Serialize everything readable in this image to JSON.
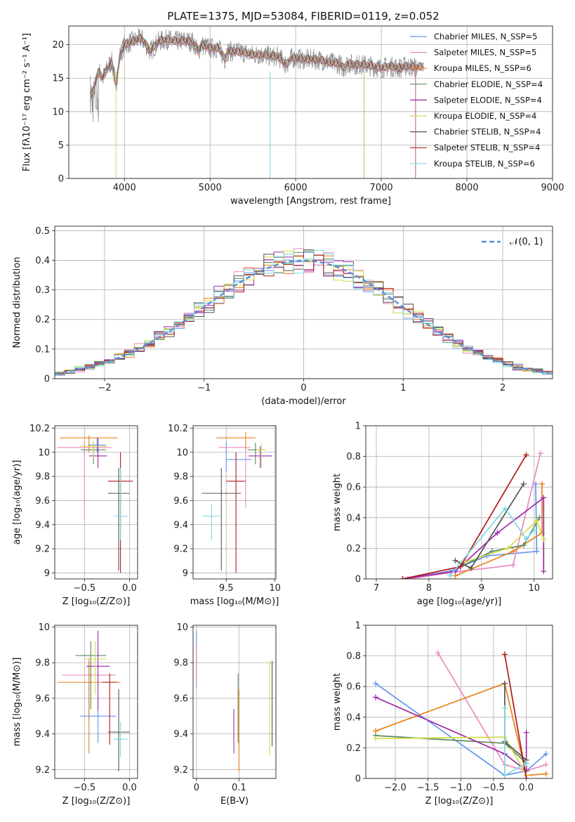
{
  "title": "PLATE=1375, MJD=53084, FIBERID=0119, z=0.052",
  "model_colors": [
    "#6495ed",
    "#e88ac3",
    "#e8801a",
    "#5a8a5a",
    "#9b2aa8",
    "#d4dc4a",
    "#555555",
    "#b01818",
    "#7fd8e0"
  ],
  "chart_data": [
    {
      "type": "line",
      "name": "spectrum",
      "xlabel": "wavelength [Angstrom, rest frame]",
      "ylabel": "Flux [fλ10⁻¹⁷ erg cm⁻² s⁻¹ A⁻¹]",
      "xlim": [
        3350,
        9000
      ],
      "ylim": [
        0,
        22.8
      ],
      "xticks": [
        4000,
        5000,
        6000,
        7000,
        8000,
        9000
      ],
      "yticks": [
        0,
        5,
        10,
        15,
        20
      ],
      "grid": true,
      "legend_position": "top-right",
      "legend": [
        "Chabrier MILES, N_SSP=5",
        "Salpeter MILES, N_SSP=5",
        "Kroupa MILES, N_SSP=6",
        "Chabrier ELODIE, N_SSP=4",
        "Salpeter ELODIE, N_SSP=4",
        "Kroupa ELODIE, N_SSP=4",
        "Chabrier STELIB, N_SSP=4",
        "Salpeter STELIB, N_SSP=4",
        "Kroupa STELIB, N_SSP=6"
      ],
      "data": {
        "wavelength": [
          3600,
          3650,
          3700,
          3750,
          3800,
          3850,
          3900,
          3950,
          4000,
          4100,
          4200,
          4300,
          4400,
          4500,
          4600,
          4700,
          4800,
          4860,
          4900,
          5000,
          5100,
          5175,
          5200,
          5300,
          5400,
          5500,
          5600,
          5700,
          5800,
          5890,
          5950,
          6000,
          6100,
          6200,
          6300,
          6400,
          6500,
          6563,
          6600,
          6700,
          6800,
          6900,
          7000,
          7100,
          7200,
          7300,
          7400,
          7500
        ],
        "model_flux": [
          12.0,
          14.0,
          16.0,
          15.0,
          16.5,
          17.5,
          14.0,
          18.5,
          20.0,
          20.5,
          21.0,
          19.0,
          20.5,
          20.8,
          20.5,
          20.6,
          20.4,
          19.0,
          20.0,
          19.5,
          19.5,
          17.8,
          19.0,
          19.0,
          18.8,
          18.5,
          18.5,
          18.3,
          18.2,
          17.0,
          18.0,
          18.0,
          17.8,
          17.8,
          17.7,
          17.3,
          17.2,
          16.5,
          17.2,
          17.0,
          17.0,
          16.8,
          16.5,
          16.8,
          16.5,
          16.8,
          16.6,
          16.8
        ]
      }
    },
    {
      "type": "histogram",
      "name": "residuals",
      "xlabel": "(data-model)/error",
      "ylabel": "Normed distribution",
      "xlim": [
        -2.5,
        2.5
      ],
      "ylim": [
        0,
        0.515
      ],
      "xticks": [
        -2,
        -1,
        0,
        1,
        2
      ],
      "yticks": [
        0.0,
        0.1,
        0.2,
        0.3,
        0.4,
        0.5
      ],
      "grid": true,
      "legend_position": "top-right",
      "legend": [
        "𝒩(0, 1)"
      ],
      "bin_width": 0.1,
      "bin_start": -2.5,
      "reference_curve": "normal(0,1)"
    },
    {
      "type": "scatter",
      "name": "age_vs_Z",
      "xlabel": "Z [log₁₀(Z/Z⊙)]",
      "ylabel": "age  [log₁₀(age/yr)]",
      "xlim": [
        -0.83,
        0.09
      ],
      "ylim": [
        8.95,
        10.22
      ],
      "xticks": [
        -0.5,
        0.0
      ],
      "xticklabels": [
        "−0.5",
        "0.0"
      ],
      "yticks": [
        9.0,
        9.2,
        9.4,
        9.6,
        9.8,
        10.0,
        10.2
      ],
      "grid": true,
      "points": [
        {
          "x": -0.36,
          "y": 10.06,
          "xerr": [
            0.1,
            0.1
          ],
          "yerr": [
            0.06,
            0.06
          ]
        },
        {
          "x": -0.5,
          "y": 10.04,
          "xerr": [
            0.3,
            0.3
          ],
          "yerr": [
            0.6,
            0.06
          ]
        },
        {
          "x": -0.45,
          "y": 10.12,
          "xerr": [
            0.32,
            0.32
          ],
          "yerr": [
            0.12,
            0.02
          ]
        },
        {
          "x": -0.4,
          "y": 10.02,
          "xerr": [
            0.14,
            0.14
          ],
          "yerr": [
            0.12,
            0.06
          ]
        },
        {
          "x": -0.35,
          "y": 9.97,
          "xerr": [
            0.1,
            0.1
          ],
          "yerr": [
            0.1,
            0.15
          ]
        },
        {
          "x": -0.4,
          "y": 10.05,
          "xerr": [
            0.15,
            0.15
          ],
          "yerr": [
            0.1,
            0.05
          ]
        },
        {
          "x": -0.12,
          "y": 9.66,
          "xerr": [
            0.12,
            0.12
          ],
          "yerr": [
            0.64,
            0.21
          ]
        },
        {
          "x": -0.1,
          "y": 9.76,
          "xerr": [
            0.14,
            0.14
          ],
          "yerr": [
            0.76,
            0.24
          ]
        },
        {
          "x": -0.1,
          "y": 9.47,
          "xerr": [
            0.08,
            0.08
          ],
          "yerr": [
            0.2,
            0.4
          ]
        }
      ]
    },
    {
      "type": "scatter",
      "name": "age_vs_mass",
      "xlabel": "mass [log₁₀(M/M⊙)]",
      "ylabel": "",
      "xlim": [
        9.16,
        10.01
      ],
      "ylim": [
        8.95,
        10.22
      ],
      "xticks": [
        9.5,
        10.0
      ],
      "yticks": [
        9.0,
        9.2,
        9.4,
        9.6,
        9.8,
        10.0,
        10.2
      ],
      "grid": true,
      "points": [
        {
          "x": 9.5,
          "y": 9.94,
          "xerr": [
            0.0,
            0.26
          ],
          "yerr": [
            0.1,
            0.15
          ]
        },
        {
          "x": 9.7,
          "y": 10.04,
          "xerr": [
            0.28,
            0.05
          ],
          "yerr": [
            0.5,
            0.06
          ]
        },
        {
          "x": 9.7,
          "y": 10.12,
          "xerr": [
            0.3,
            0.1
          ],
          "yerr": [
            0.1,
            0.05
          ]
        },
        {
          "x": 9.8,
          "y": 10.02,
          "xerr": [
            0.08,
            0.08
          ],
          "yerr": [
            0.12,
            0.06
          ]
        },
        {
          "x": 9.85,
          "y": 9.97,
          "xerr": [
            0.12,
            0.12
          ],
          "yerr": [
            0.1,
            0.08
          ]
        },
        {
          "x": 9.86,
          "y": 10.02,
          "xerr": [
            0.05,
            0.05
          ],
          "yerr": [
            0.15,
            0.05
          ]
        },
        {
          "x": 9.45,
          "y": 9.66,
          "xerr": [
            0.2,
            0.2
          ],
          "yerr": [
            0.64,
            0.21
          ]
        },
        {
          "x": 9.6,
          "y": 9.76,
          "xerr": [
            0.1,
            0.1
          ],
          "yerr": [
            0.76,
            0.24
          ]
        },
        {
          "x": 9.35,
          "y": 9.47,
          "xerr": [
            0.09,
            0.09
          ],
          "yerr": [
            0.2,
            0.1
          ]
        }
      ]
    },
    {
      "type": "line",
      "name": "mass_weight_vs_age",
      "xlabel": "age  [log₁₀(age/yr)]",
      "ylabel": "mass weight",
      "xlim": [
        6.8,
        10.35
      ],
      "ylim": [
        0.0,
        1.0
      ],
      "xticks": [
        7,
        8,
        9,
        10
      ],
      "yticks": [
        0.0,
        0.2,
        0.4,
        0.6,
        0.8,
        1.0
      ],
      "grid": true,
      "series": [
        {
          "x": [
            7.5,
            8.4,
            9.1,
            10.05,
            10.03
          ],
          "y": [
            0.0,
            0.05,
            0.15,
            0.18,
            0.62
          ]
        },
        {
          "x": [
            7.6,
            8.6,
            9.6,
            10.12
          ],
          "y": [
            0.0,
            0.05,
            0.09,
            0.82
          ]
        },
        {
          "x": [
            8.5,
            9.6,
            10.15,
            10.15,
            10.15
          ],
          "y": [
            0.02,
            0.18,
            0.3,
            0.62,
            0.62
          ]
        },
        {
          "x": [
            8.6,
            9.2,
            9.8,
            10.1
          ],
          "y": [
            0.08,
            0.18,
            0.22,
            0.4
          ]
        },
        {
          "x": [
            7.5,
            8.5,
            9.3,
            10.18,
            10.18
          ],
          "y": [
            0.0,
            0.05,
            0.3,
            0.53,
            0.05
          ]
        },
        {
          "x": [
            8.6,
            9.5,
            10.05,
            10.18
          ],
          "y": [
            0.1,
            0.2,
            0.38,
            0.26
          ]
        },
        {
          "x": [
            8.5,
            8.8,
            9.8
          ],
          "y": [
            0.12,
            0.07,
            0.62
          ]
        },
        {
          "x": [
            7.5,
            8.6,
            9.85
          ],
          "y": [
            0.0,
            0.08,
            0.81
          ]
        },
        {
          "x": [
            8.4,
            9.45,
            9.85,
            10.0
          ],
          "y": [
            0.02,
            0.46,
            0.26,
            0.32
          ]
        }
      ]
    },
    {
      "type": "scatter",
      "name": "mass_vs_Z",
      "xlabel": "Z [log₁₀(Z/Z⊙)]",
      "ylabel": "mass [log₁₀(M/M⊙)]",
      "xlim": [
        -0.83,
        0.09
      ],
      "ylim": [
        9.15,
        10.01
      ],
      "xticks": [
        -0.5,
        0.0
      ],
      "xticklabels": [
        "−0.5",
        "0.0"
      ],
      "yticks": [
        9.2,
        9.4,
        9.6,
        9.8,
        10.0
      ],
      "grid": true,
      "points": [
        {
          "x": -0.35,
          "y": 9.5,
          "xerr": [
            0.2,
            0.2
          ],
          "yerr": [
            0.15,
            0.12
          ]
        },
        {
          "x": -0.45,
          "y": 9.73,
          "xerr": [
            0.3,
            0.3
          ],
          "yerr": [
            0.25,
            0.1
          ]
        },
        {
          "x": -0.45,
          "y": 9.69,
          "xerr": [
            0.35,
            0.35
          ],
          "yerr": [
            0.4,
            0.12
          ]
        },
        {
          "x": -0.43,
          "y": 9.84,
          "xerr": [
            0.17,
            0.17
          ],
          "yerr": [
            0.3,
            0.08
          ]
        },
        {
          "x": -0.35,
          "y": 9.78,
          "xerr": [
            0.13,
            0.13
          ],
          "yerr": [
            0.25,
            0.2
          ]
        },
        {
          "x": -0.38,
          "y": 9.82,
          "xerr": [
            0.12,
            0.12
          ],
          "yerr": [
            0.2,
            0.1
          ]
        },
        {
          "x": -0.12,
          "y": 9.41,
          "xerr": [
            0.12,
            0.12
          ],
          "yerr": [
            0.22,
            0.24
          ]
        },
        {
          "x": -0.22,
          "y": 9.69,
          "xerr": [
            0.08,
            0.08
          ],
          "yerr": [
            0.35,
            0.05
          ]
        },
        {
          "x": -0.1,
          "y": 9.37,
          "xerr": [
            0.08,
            0.08
          ],
          "yerr": [
            0.1,
            0.1
          ]
        }
      ]
    },
    {
      "type": "scatter",
      "name": "mass_vs_ebv",
      "xlabel": "E(B-V)",
      "ylabel": "",
      "xlim": [
        -0.008,
        0.187
      ],
      "ylim": [
        9.15,
        10.01
      ],
      "xticks": [
        0.0,
        0.1
      ],
      "yticks": [
        9.2,
        9.4,
        9.6,
        9.8,
        10.0
      ],
      "grid": true,
      "points": [
        {
          "x": 0.0,
          "y": 9.96,
          "yerr": [
            0.3,
            0.02
          ]
        },
        {
          "x": 0.0,
          "y": 9.82,
          "yerr": [
            0.15,
            0.08
          ]
        },
        {
          "x": 0.1,
          "y": 9.41,
          "yerr": [
            0.22,
            0.24
          ]
        },
        {
          "x": 0.098,
          "y": 9.55,
          "yerr": [
            0.2,
            0.19
          ]
        },
        {
          "x": 0.088,
          "y": 9.42,
          "yerr": [
            0.13,
            0.12
          ]
        },
        {
          "x": 0.172,
          "y": 9.55,
          "yerr": [
            0.27,
            0.26
          ]
        },
        {
          "x": 0.178,
          "y": 9.55,
          "yerr": [
            0.22,
            0.26
          ]
        }
      ]
    },
    {
      "type": "line",
      "name": "mass_weight_vs_Z",
      "xlabel": "Z [log₁₀(Z/Z⊙)]",
      "ylabel": "mass weight",
      "xlim": [
        -2.45,
        0.4
      ],
      "ylim": [
        0.0,
        1.0
      ],
      "xticks": [
        -2.0,
        -1.5,
        -1.0,
        -0.5,
        0.0
      ],
      "xticklabels": [
        "−2.0",
        "−1.5",
        "−1.0",
        "−0.5",
        "0.0"
      ],
      "yticks": [
        0.0,
        0.2,
        0.4,
        0.6,
        0.8,
        1.0
      ],
      "grid": true,
      "series": [
        {
          "x": [
            -2.3,
            -0.33,
            0.0,
            0.3
          ],
          "y": [
            0.62,
            0.02,
            0.05,
            0.16
          ]
        },
        {
          "x": [
            -1.35,
            -0.33,
            0.0,
            0.3
          ],
          "y": [
            0.82,
            0.09,
            0.05,
            0.09
          ]
        },
        {
          "x": [
            -2.3,
            -0.33,
            0.0,
            0.3
          ],
          "y": [
            0.31,
            0.62,
            0.02,
            0.03
          ]
        },
        {
          "x": [
            -2.3,
            -0.33,
            0.0
          ],
          "y": [
            0.28,
            0.23,
            0.1
          ]
        },
        {
          "x": [
            -2.3,
            -0.33,
            0.0,
            0.0
          ],
          "y": [
            0.53,
            0.16,
            0.05,
            0.3
          ]
        },
        {
          "x": [
            -2.3,
            -0.33,
            0.0
          ],
          "y": [
            0.26,
            0.27,
            0.02
          ]
        },
        {
          "x": [
            -0.33,
            -0.33,
            0.0
          ],
          "y": [
            0.62,
            0.24,
            0.12
          ]
        },
        {
          "x": [
            -0.33,
            0.0
          ],
          "y": [
            0.81,
            0.0
          ]
        },
        {
          "x": [
            -0.33,
            -0.33,
            0.0
          ],
          "y": [
            0.46,
            0.02,
            0.1
          ]
        }
      ]
    }
  ]
}
